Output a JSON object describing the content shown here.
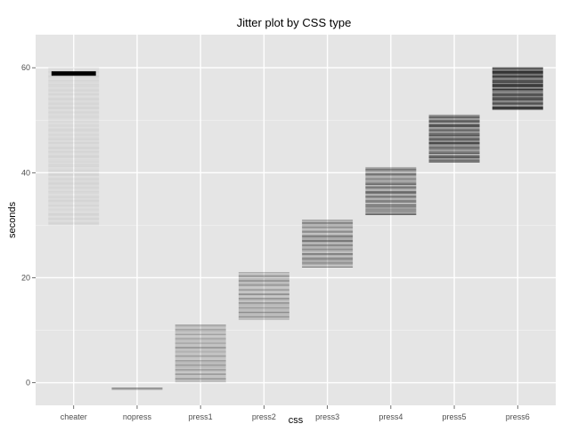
{
  "chart_data": {
    "type": "scatter",
    "title": "Jitter plot by CSS type",
    "xlabel": "css",
    "ylabel": "seconds",
    "categories": [
      "cheater",
      "nopress",
      "press1",
      "press2",
      "press3",
      "press4",
      "press5",
      "press6"
    ],
    "y_ticks": [
      0,
      20,
      40,
      60
    ],
    "y_tick_labels": [
      "0",
      "20",
      "40",
      "60"
    ],
    "ylim": [
      -4.3,
      66.3
    ],
    "grid": true,
    "legend": "none",
    "jitter_width": 0.8,
    "series": [
      {
        "category": "cheater",
        "y_min": 30,
        "y_max": 60,
        "mass": 58.9,
        "mass_width": 0.7,
        "density": 0.08
      },
      {
        "category": "nopress",
        "y_min": -1.5,
        "y_max": -1,
        "density": 0.5
      },
      {
        "category": "press1",
        "y_min": 0,
        "y_max": 11,
        "density": 0.35
      },
      {
        "category": "press2",
        "y_min": 12,
        "y_max": 21,
        "density": 0.4
      },
      {
        "category": "press3",
        "y_min": 22,
        "y_max": 31,
        "density": 0.5
      },
      {
        "category": "press4",
        "y_min": 32,
        "y_max": 41,
        "density": 0.6
      },
      {
        "category": "press5",
        "y_min": 42,
        "y_max": 51,
        "density": 0.75
      },
      {
        "category": "press6",
        "y_min": 52,
        "y_max": 60,
        "density": 1.0
      }
    ],
    "colors": {
      "panel": "#e5e5e5",
      "grid_major": "#ffffff",
      "grid_minor": "#f2f2f2",
      "points": "#000000"
    }
  }
}
